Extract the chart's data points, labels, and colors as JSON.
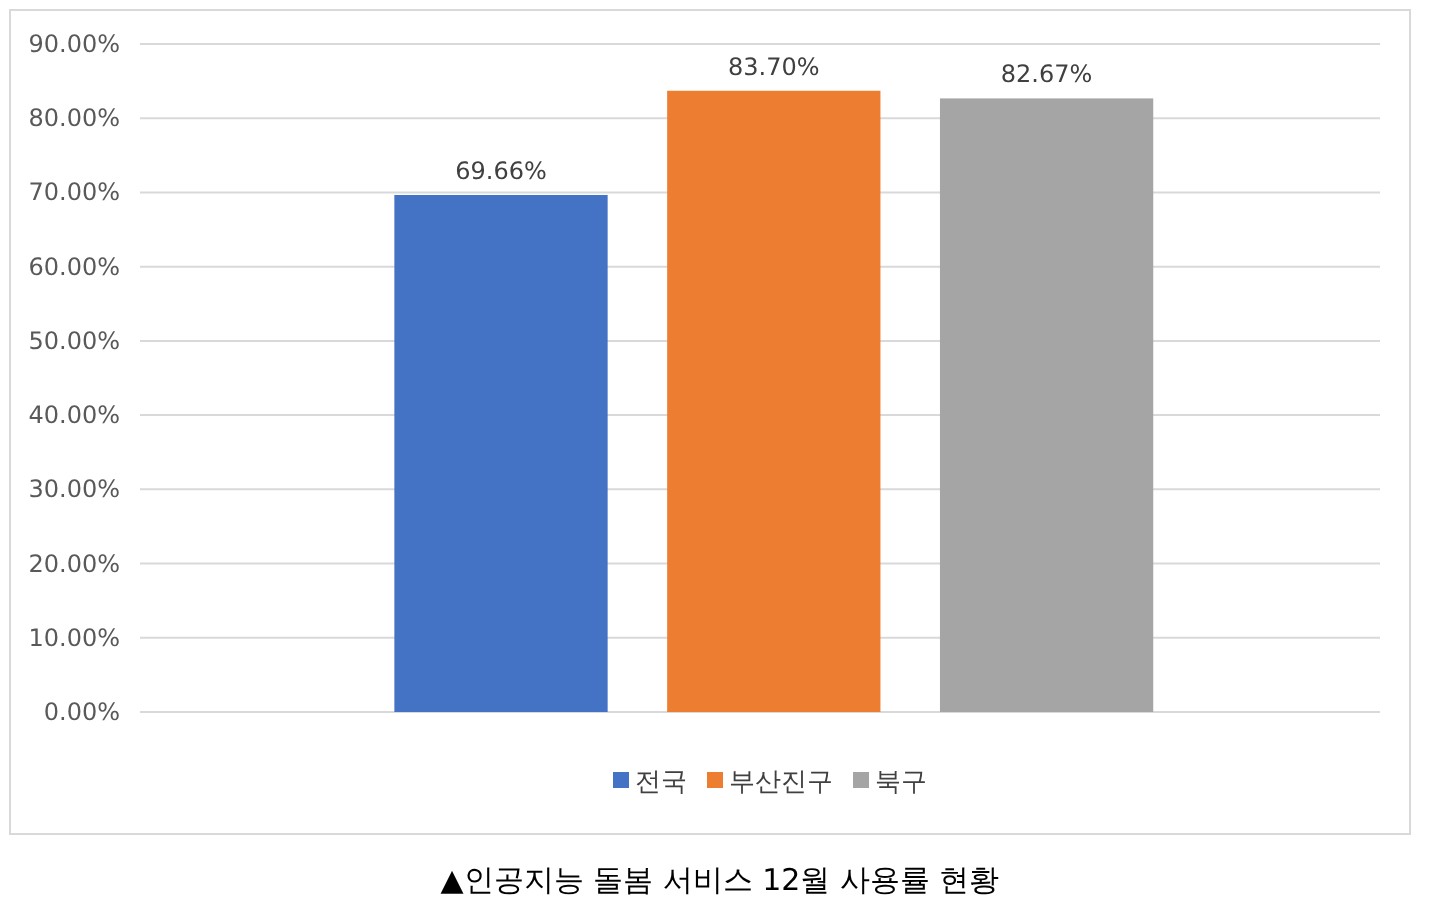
{
  "chart_data": {
    "type": "bar",
    "title": "▲인공지능 돌봄 서비스 12월 사용률 현황",
    "categories": [
      null
    ],
    "series": [
      {
        "name": "전국",
        "color": "#4472c4",
        "values": [
          69.66
        ],
        "value_labels": [
          "69.66%"
        ]
      },
      {
        "name": "부산진구",
        "color": "#ed7d31",
        "values": [
          83.7
        ],
        "value_labels": [
          "83.70%"
        ]
      },
      {
        "name": "북구",
        "color": "#a5a5a5",
        "values": [
          82.67
        ],
        "value_labels": [
          "82.67%"
        ]
      }
    ],
    "ylim": [
      0,
      90
    ],
    "yticks": [
      {
        "value": 0,
        "label": "0.00%"
      },
      {
        "value": 10,
        "label": "10.00%"
      },
      {
        "value": 20,
        "label": "20.00%"
      },
      {
        "value": 30,
        "label": "30.00%"
      },
      {
        "value": 40,
        "label": "40.00%"
      },
      {
        "value": 50,
        "label": "50.00%"
      },
      {
        "value": 60,
        "label": "60.00%"
      },
      {
        "value": 70,
        "label": "70.00%"
      },
      {
        "value": 80,
        "label": "80.00%"
      },
      {
        "value": 90,
        "label": "90.00%"
      }
    ],
    "grid": "y",
    "legend": "bottom"
  }
}
